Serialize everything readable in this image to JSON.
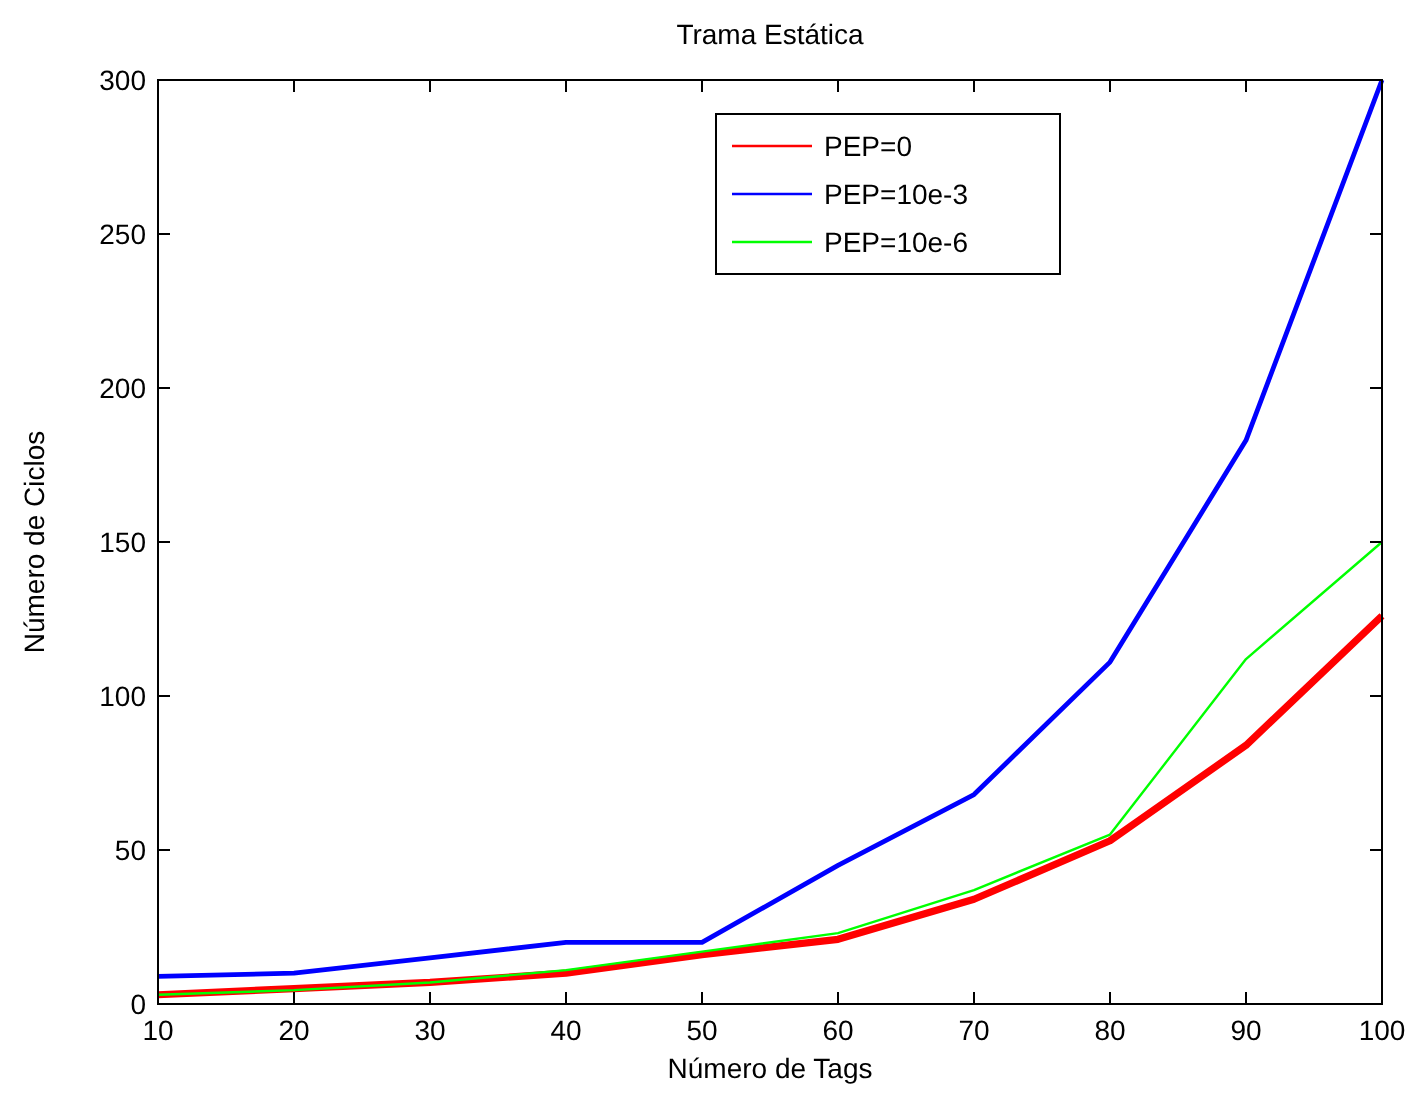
{
  "chart_data": {
    "type": "line",
    "title": "Trama Estática",
    "xlabel": "Número de Tags",
    "ylabel": "Número de Ciclos",
    "x": [
      10,
      20,
      30,
      40,
      50,
      60,
      70,
      80,
      90,
      100
    ],
    "series": [
      {
        "name": "PEP=0",
        "color": "#ff0000",
        "values": [
          3,
          5,
          7,
          10,
          16,
          21,
          34,
          53,
          84,
          126
        ]
      },
      {
        "name": "PEP=10e-3",
        "color": "#0000ff",
        "values": [
          9,
          10,
          15,
          20,
          20,
          45,
          68,
          111,
          183,
          300
        ]
      },
      {
        "name": "PEP=10e-6",
        "color": "#00ff00",
        "values": [
          3,
          4.5,
          7,
          11,
          17,
          23,
          37,
          55,
          112,
          150
        ]
      }
    ],
    "xlim": [
      10,
      100
    ],
    "xticks": [
      10,
      20,
      30,
      40,
      50,
      60,
      70,
      80,
      90,
      100
    ],
    "ylim": [
      0,
      300
    ],
    "yticks": [
      0,
      50,
      100,
      150,
      200,
      250,
      300
    ],
    "grid": false,
    "legend": "top",
    "marker": "none",
    "line_style": "solid"
  }
}
